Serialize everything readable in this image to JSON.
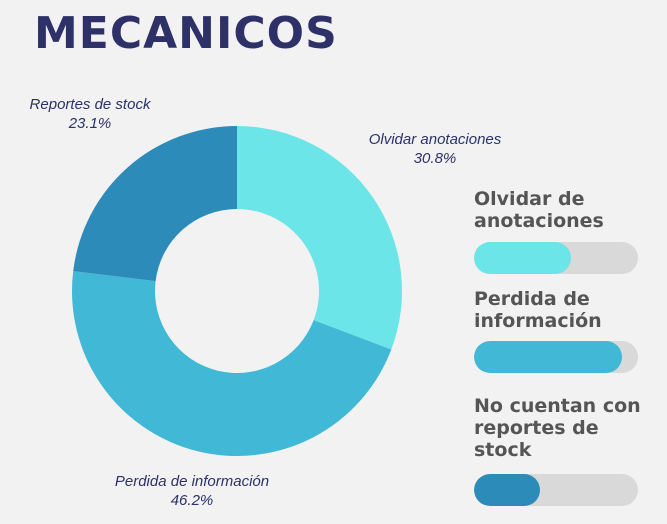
{
  "title": "MECANICOS",
  "chart_data": {
    "type": "pie",
    "categories": [
      "Olvidar anotaciones",
      "Perdida de información",
      "Reportes de stock"
    ],
    "values": [
      30.8,
      46.2,
      23.1
    ],
    "value_labels": [
      "30.8%",
      "46.2%",
      "23.1%"
    ],
    "colors": [
      "#6ce5e8",
      "#41b8d5",
      "#2d8bba"
    ],
    "donut": true
  },
  "legend": [
    {
      "label_line1": "Olvidar de",
      "label_line2": "anotaciones",
      "label_line3": "",
      "level": 0.59,
      "color": "#6ce5e8"
    },
    {
      "label_line1": "Perdida de",
      "label_line2": "información",
      "label_line3": "",
      "level": 0.9,
      "color": "#41b8d5"
    },
    {
      "label_line1": "No cuentan con",
      "label_line2": "reportes de",
      "label_line3": "stock",
      "level": 0.4,
      "color": "#2d8bba"
    }
  ]
}
